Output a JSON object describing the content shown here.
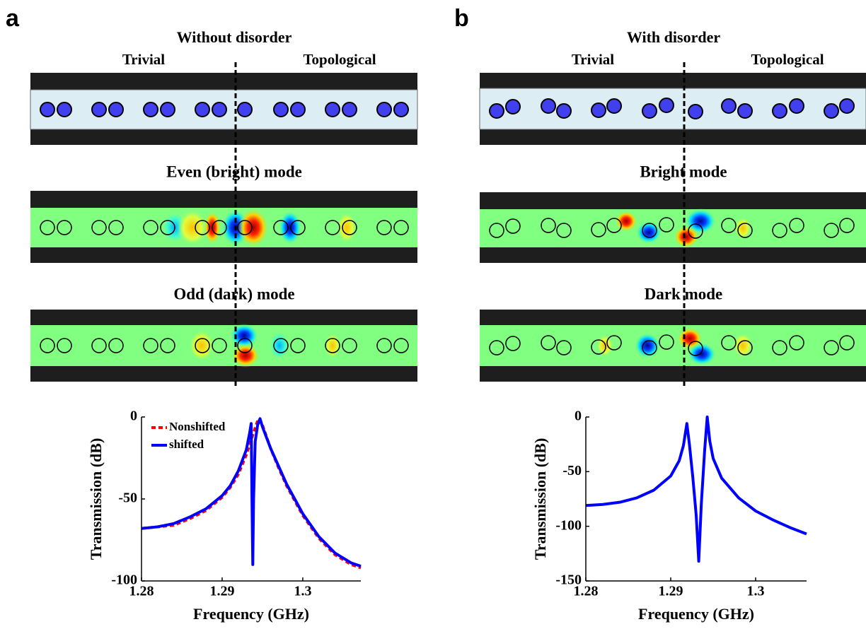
{
  "panels": [
    {
      "label": "a",
      "title": "Without disorder",
      "left_label": "Trivial",
      "right_label": "Topological",
      "modes": [
        "Even (bright) mode",
        "Odd (dark) mode"
      ]
    },
    {
      "label": "b",
      "title": "With disorder",
      "left_label": "Trivial",
      "right_label": "Topological",
      "modes": [
        "Bright mode",
        "Dark mode"
      ]
    }
  ],
  "chart_data": [
    {
      "type": "line",
      "xlabel": "Frequency (GHz)",
      "ylabel": "Transmission (dB)",
      "xlim": [
        1.28,
        1.3072
      ],
      "ylim": [
        -100,
        0
      ],
      "xticks": [
        1.28,
        1.29,
        1.3
      ],
      "yticks": [
        -100,
        -50,
        0
      ],
      "legend": "upper left",
      "series": [
        {
          "name": "Nonshifted",
          "color": "#ff0000",
          "linestyle": "dashed",
          "x": [
            1.28,
            1.282,
            1.284,
            1.286,
            1.288,
            1.29,
            1.291,
            1.292,
            1.293,
            1.294,
            1.2945,
            1.295,
            1.296,
            1.297,
            1.298,
            1.3,
            1.302,
            1.304,
            1.306,
            1.3072
          ],
          "values": [
            -68,
            -67,
            -66,
            -62,
            -57,
            -49,
            -43,
            -35,
            -23,
            -8,
            -1,
            -5,
            -19,
            -31,
            -42,
            -60,
            -74,
            -84,
            -90,
            -92
          ]
        },
        {
          "name": "shifted",
          "color": "#0000ff",
          "linestyle": "solid",
          "x": [
            1.28,
            1.282,
            1.284,
            1.286,
            1.288,
            1.29,
            1.291,
            1.292,
            1.293,
            1.2934,
            1.2936,
            1.2937,
            1.2938,
            1.2939,
            1.2941,
            1.2944,
            1.2947,
            1.295,
            1.296,
            1.297,
            1.298,
            1.3,
            1.302,
            1.304,
            1.306,
            1.3072
          ],
          "values": [
            -68,
            -67,
            -65,
            -61,
            -56,
            -48,
            -42,
            -33,
            -20,
            -10,
            -4,
            -50,
            -90,
            -50,
            -15,
            -5,
            -1,
            -6,
            -19,
            -30,
            -41,
            -59,
            -73,
            -83,
            -89,
            -91
          ]
        }
      ]
    },
    {
      "type": "line",
      "xlabel": "Frequency (GHz)",
      "ylabel": "Transmission (dB)",
      "xlim": [
        1.28,
        1.306
      ],
      "ylim": [
        -150,
        0
      ],
      "xticks": [
        1.28,
        1.29,
        1.3
      ],
      "yticks": [
        -150,
        -100,
        -50,
        0
      ],
      "series": [
        {
          "color": "#0000ff",
          "linestyle": "solid",
          "x": [
            1.28,
            1.282,
            1.284,
            1.286,
            1.288,
            1.29,
            1.291,
            1.2915,
            1.2919,
            1.2922,
            1.2926,
            1.293,
            1.2933,
            1.2936,
            1.294,
            1.2943,
            1.2946,
            1.295,
            1.296,
            1.298,
            1.3,
            1.302,
            1.304,
            1.306
          ],
          "values": [
            -81,
            -80,
            -78,
            -74,
            -67,
            -54,
            -40,
            -26,
            -6,
            -25,
            -55,
            -90,
            -132,
            -80,
            -30,
            0,
            -22,
            -38,
            -56,
            -74,
            -86,
            -94,
            -101,
            -107
          ]
        }
      ]
    }
  ]
}
